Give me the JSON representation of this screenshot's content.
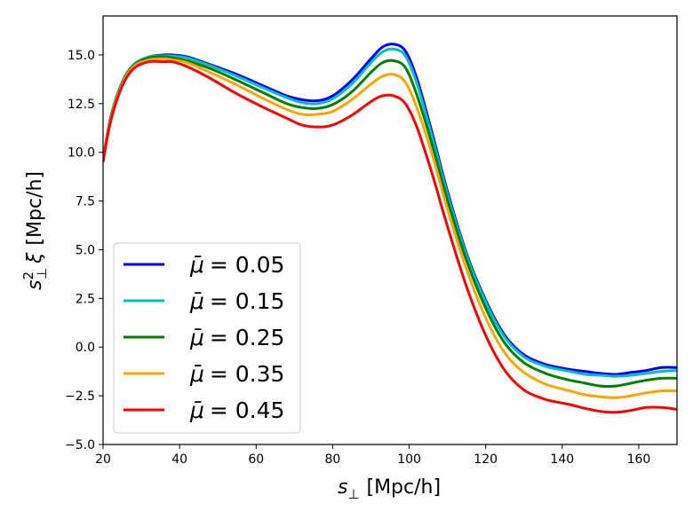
{
  "chart_data": {
    "type": "line",
    "title": "",
    "xlabel": "s⊥ [Mpc/h]",
    "xlabel_main": "s",
    "xlabel_sub": "⊥",
    "xlabel_unit": "[Mpc/h]",
    "ylabel": "s⊥² ξ [Mpc/h]",
    "ylabel_main": "s",
    "ylabel_sup": "2",
    "ylabel_sub": "⊥",
    "ylabel_xi": "ξ",
    "ylabel_unit": "[Mpc/h]",
    "xlim": [
      20,
      170
    ],
    "ylim": [
      -5.0,
      17.0
    ],
    "x_ticks": [
      20,
      40,
      60,
      80,
      100,
      120,
      140,
      160
    ],
    "y_ticks": [
      -5.0,
      -2.5,
      0.0,
      2.5,
      5.0,
      7.5,
      10.0,
      12.5,
      15.0
    ],
    "x_tick_labels": [
      "20",
      "40",
      "60",
      "80",
      "100",
      "120",
      "140",
      "160"
    ],
    "y_tick_labels": [
      "−5.0",
      "−2.5",
      "0.0",
      "2.5",
      "5.0",
      "7.5",
      "10.0",
      "12.5",
      "15.0"
    ],
    "legend_position": "lower-left",
    "series": [
      {
        "name": "μ̄ = 0.05",
        "legend_symbol": "μ̄",
        "legend_value": "= 0.05",
        "color": "#0000ff",
        "x": [
          20,
          22,
          25,
          28,
          32,
          36,
          38,
          42,
          48,
          55,
          62,
          68,
          72,
          76,
          80,
          85,
          90,
          93,
          96,
          99,
          102,
          106,
          110,
          115,
          120,
          125,
          130,
          135,
          138,
          142,
          146,
          150,
          154,
          158,
          162,
          166,
          170
        ],
        "y": [
          9.6,
          11.8,
          13.6,
          14.5,
          14.9,
          15.0,
          15.0,
          14.9,
          14.5,
          14.0,
          13.4,
          12.9,
          12.7,
          12.65,
          12.9,
          13.7,
          14.8,
          15.4,
          15.55,
          15.2,
          13.8,
          11.0,
          8.0,
          4.8,
          2.4,
          0.6,
          -0.4,
          -0.85,
          -1.0,
          -1.15,
          -1.25,
          -1.35,
          -1.4,
          -1.3,
          -1.2,
          -1.05,
          -1.05
        ]
      },
      {
        "name": "μ̄ = 0.15",
        "legend_symbol": "μ̄",
        "legend_value": "= 0.15",
        "color": "#00bfbf",
        "x": [
          20,
          22,
          25,
          28,
          32,
          36,
          38,
          42,
          48,
          55,
          62,
          68,
          72,
          76,
          80,
          85,
          90,
          93,
          96,
          99,
          102,
          106,
          110,
          115,
          120,
          125,
          130,
          135,
          138,
          142,
          146,
          150,
          154,
          158,
          162,
          166,
          170
        ],
        "y": [
          9.6,
          11.8,
          13.6,
          14.5,
          14.9,
          14.95,
          14.95,
          14.85,
          14.45,
          13.9,
          13.3,
          12.8,
          12.55,
          12.5,
          12.75,
          13.5,
          14.6,
          15.15,
          15.3,
          14.95,
          13.55,
          10.8,
          7.85,
          4.7,
          2.3,
          0.5,
          -0.5,
          -0.95,
          -1.1,
          -1.25,
          -1.4,
          -1.45,
          -1.5,
          -1.45,
          -1.35,
          -1.25,
          -1.2
        ]
      },
      {
        "name": "μ̄ = 0.25",
        "legend_symbol": "μ̄",
        "legend_value": "= 0.25",
        "color": "#008000",
        "x": [
          20,
          22,
          25,
          28,
          32,
          36,
          38,
          42,
          48,
          55,
          62,
          68,
          72,
          76,
          80,
          85,
          90,
          93,
          96,
          99,
          102,
          106,
          110,
          115,
          120,
          125,
          130,
          135,
          138,
          142,
          146,
          150,
          154,
          158,
          162,
          166,
          170
        ],
        "y": [
          9.6,
          11.75,
          13.55,
          14.45,
          14.85,
          14.9,
          14.85,
          14.7,
          14.3,
          13.7,
          13.05,
          12.5,
          12.3,
          12.25,
          12.45,
          13.1,
          14.1,
          14.6,
          14.7,
          14.35,
          12.95,
          10.4,
          7.55,
          4.45,
          2.0,
          0.2,
          -0.8,
          -1.3,
          -1.5,
          -1.7,
          -1.85,
          -2.0,
          -2.0,
          -1.85,
          -1.7,
          -1.6,
          -1.6
        ]
      },
      {
        "name": "μ̄ = 0.35",
        "legend_symbol": "μ̄",
        "legend_value": "= 0.35",
        "color": "#ffa500",
        "x": [
          20,
          22,
          25,
          28,
          32,
          36,
          38,
          42,
          48,
          55,
          62,
          68,
          72,
          76,
          80,
          85,
          90,
          93,
          96,
          99,
          102,
          106,
          110,
          115,
          120,
          125,
          130,
          135,
          138,
          142,
          146,
          150,
          154,
          158,
          162,
          166,
          170
        ],
        "y": [
          9.6,
          11.7,
          13.5,
          14.4,
          14.75,
          14.8,
          14.75,
          14.6,
          14.1,
          13.45,
          12.75,
          12.2,
          11.95,
          11.95,
          12.1,
          12.7,
          13.5,
          13.9,
          14.0,
          13.6,
          12.3,
          9.9,
          7.1,
          4.0,
          1.5,
          -0.3,
          -1.3,
          -1.85,
          -2.05,
          -2.25,
          -2.45,
          -2.55,
          -2.6,
          -2.5,
          -2.35,
          -2.25,
          -2.25
        ]
      },
      {
        "name": "μ̄ = 0.45",
        "legend_symbol": "μ̄",
        "legend_value": "= 0.45",
        "color": "#ff0000",
        "x": [
          20,
          22,
          25,
          28,
          32,
          36,
          38,
          42,
          48,
          55,
          62,
          68,
          72,
          76,
          80,
          85,
          90,
          93,
          96,
          99,
          102,
          106,
          110,
          115,
          120,
          125,
          130,
          135,
          138,
          142,
          146,
          150,
          154,
          158,
          162,
          166,
          170
        ],
        "y": [
          9.5,
          11.6,
          13.4,
          14.3,
          14.65,
          14.65,
          14.65,
          14.4,
          13.8,
          13.0,
          12.3,
          11.75,
          11.4,
          11.3,
          11.4,
          11.9,
          12.6,
          12.9,
          12.9,
          12.5,
          11.3,
          8.9,
          6.2,
          3.1,
          0.6,
          -1.2,
          -2.2,
          -2.65,
          -2.8,
          -2.95,
          -3.15,
          -3.3,
          -3.35,
          -3.25,
          -3.1,
          -3.1,
          -3.2
        ]
      }
    ]
  }
}
